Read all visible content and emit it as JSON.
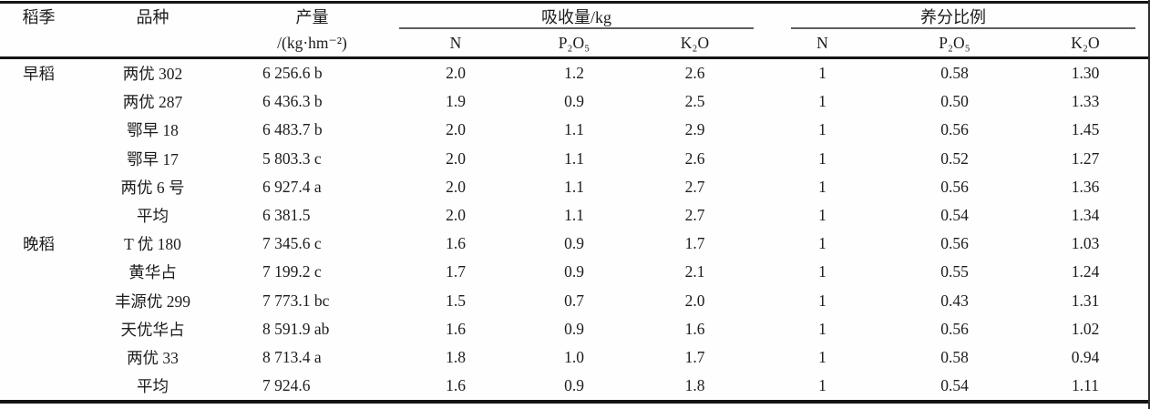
{
  "table": {
    "headers": {
      "season": "稻季",
      "variety": "品种",
      "yield_line1": "产量",
      "yield_line2": "/(kg·hm⁻²)",
      "uptake_group": "吸收量/kg",
      "ratio_group": "养分比例",
      "uptake_n": "N",
      "uptake_p2o5": "P₂O₅",
      "uptake_k2o": "K₂O",
      "ratio_n": "N",
      "ratio_p2o5": "P₂O₅",
      "ratio_k2o": "K₂O"
    },
    "rows": [
      {
        "season": "早稻",
        "variety": "两优 302",
        "yield": "6 256.6 b",
        "uptake_n": "2.0",
        "uptake_p": "1.2",
        "uptake_k": "2.6",
        "ratio_n": "1",
        "ratio_p": "0.58",
        "ratio_k": "1.30"
      },
      {
        "season": "",
        "variety": "两优 287",
        "yield": "6 436.3 b",
        "uptake_n": "1.9",
        "uptake_p": "0.9",
        "uptake_k": "2.5",
        "ratio_n": "1",
        "ratio_p": "0.50",
        "ratio_k": "1.33"
      },
      {
        "season": "",
        "variety": "鄂早 18",
        "yield": "6 483.7 b",
        "uptake_n": "2.0",
        "uptake_p": "1.1",
        "uptake_k": "2.9",
        "ratio_n": "1",
        "ratio_p": "0.56",
        "ratio_k": "1.45"
      },
      {
        "season": "",
        "variety": "鄂早 17",
        "yield": "5 803.3 c",
        "uptake_n": "2.0",
        "uptake_p": "1.1",
        "uptake_k": "2.6",
        "ratio_n": "1",
        "ratio_p": "0.52",
        "ratio_k": "1.27"
      },
      {
        "season": "",
        "variety": "两优 6 号",
        "yield": "6 927.4 a",
        "uptake_n": "2.0",
        "uptake_p": "1.1",
        "uptake_k": "2.7",
        "ratio_n": "1",
        "ratio_p": "0.56",
        "ratio_k": "1.36"
      },
      {
        "season": "",
        "variety": "平均",
        "yield": "6 381.5",
        "uptake_n": "2.0",
        "uptake_p": "1.1",
        "uptake_k": "2.7",
        "ratio_n": "1",
        "ratio_p": "0.54",
        "ratio_k": "1.34"
      },
      {
        "season": "晚稻",
        "variety": "T 优 180",
        "yield": "7 345.6 c",
        "uptake_n": "1.6",
        "uptake_p": "0.9",
        "uptake_k": "1.7",
        "ratio_n": "1",
        "ratio_p": "0.56",
        "ratio_k": "1.03"
      },
      {
        "season": "",
        "variety": "黄华占",
        "yield": "7 199.2 c",
        "uptake_n": "1.7",
        "uptake_p": "0.9",
        "uptake_k": "2.1",
        "ratio_n": "1",
        "ratio_p": "0.55",
        "ratio_k": "1.24"
      },
      {
        "season": "",
        "variety": "丰源优 299",
        "yield": "7 773.1 bc",
        "uptake_n": "1.5",
        "uptake_p": "0.7",
        "uptake_k": "2.0",
        "ratio_n": "1",
        "ratio_p": "0.43",
        "ratio_k": "1.31"
      },
      {
        "season": "",
        "variety": "天优华占",
        "yield": "8 591.9 ab",
        "uptake_n": "1.6",
        "uptake_p": "0.9",
        "uptake_k": "1.6",
        "ratio_n": "1",
        "ratio_p": "0.56",
        "ratio_k": "1.02"
      },
      {
        "season": "",
        "variety": "两优 33",
        "yield": "8 713.4 a",
        "uptake_n": "1.8",
        "uptake_p": "1.0",
        "uptake_k": "1.7",
        "ratio_n": "1",
        "ratio_p": "0.58",
        "ratio_k": "0.94"
      },
      {
        "season": "",
        "variety": "平均",
        "yield": "7 924.6",
        "uptake_n": "1.6",
        "uptake_p": "0.9",
        "uptake_k": "1.8",
        "ratio_n": "1",
        "ratio_p": "0.54",
        "ratio_k": "1.11"
      }
    ]
  }
}
